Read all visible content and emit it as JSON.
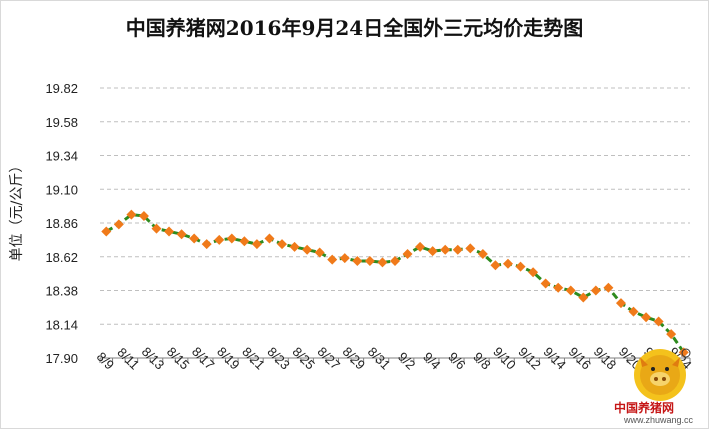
{
  "chart_data": {
    "type": "line",
    "title": "中国养猪网2016年9月24日全国外三元均价走势图",
    "xlabel": "",
    "ylabel": "单位（元/公斤）",
    "ylim": [
      17.9,
      19.82
    ],
    "yticks": [
      "19.82",
      "19.58",
      "19.34",
      "19.10",
      "18.86",
      "18.62",
      "18.38",
      "18.14",
      "17.90"
    ],
    "categories": [
      "8/9",
      "8/10",
      "8/11",
      "8/12",
      "8/13",
      "8/14",
      "8/15",
      "8/16",
      "8/17",
      "8/18",
      "8/19",
      "8/20",
      "8/21",
      "8/22",
      "8/23",
      "8/24",
      "8/25",
      "8/26",
      "8/27",
      "8/28",
      "8/29",
      "8/30",
      "8/31",
      "9/1",
      "9/2",
      "9/3",
      "9/4",
      "9/5",
      "9/6",
      "9/7",
      "9/8",
      "9/9",
      "9/10",
      "9/11",
      "9/12",
      "9/13",
      "9/14",
      "9/15",
      "9/16",
      "9/17",
      "9/18",
      "9/19",
      "9/20",
      "9/21",
      "9/22",
      "9/23",
      "9/24"
    ],
    "xtick_labels": [
      "8/9",
      "8/11",
      "8/13",
      "8/15",
      "8/17",
      "8/19",
      "8/21",
      "8/23",
      "8/25",
      "8/27",
      "8/29",
      "8/31",
      "9/2",
      "9/4",
      "9/6",
      "9/8",
      "9/10",
      "9/12",
      "9/14",
      "9/16",
      "9/18",
      "9/20",
      "9/22",
      "9/24"
    ],
    "series": [
      {
        "values": [
          18.8,
          18.85,
          18.92,
          18.91,
          18.82,
          18.8,
          18.78,
          18.75,
          18.71,
          18.74,
          18.75,
          18.73,
          18.71,
          18.75,
          18.71,
          18.69,
          18.67,
          18.65,
          18.6,
          18.61,
          18.59,
          18.59,
          18.58,
          18.59,
          18.64,
          18.69,
          18.66,
          18.67,
          18.67,
          18.68,
          18.64,
          18.56,
          18.57,
          18.55,
          18.51,
          18.43,
          18.4,
          18.38,
          18.33,
          18.38,
          18.4,
          18.29,
          18.23,
          18.19,
          18.16,
          18.07,
          17.94
        ],
        "line_color": "#2e8b1e",
        "marker_color": "#f07a1a",
        "marker": "diamond",
        "line_style": "dashed"
      }
    ],
    "grid": "horizontal dashed"
  },
  "watermark": {
    "brand": "中国养猪网",
    "url": "www.zhuwang.cc"
  }
}
